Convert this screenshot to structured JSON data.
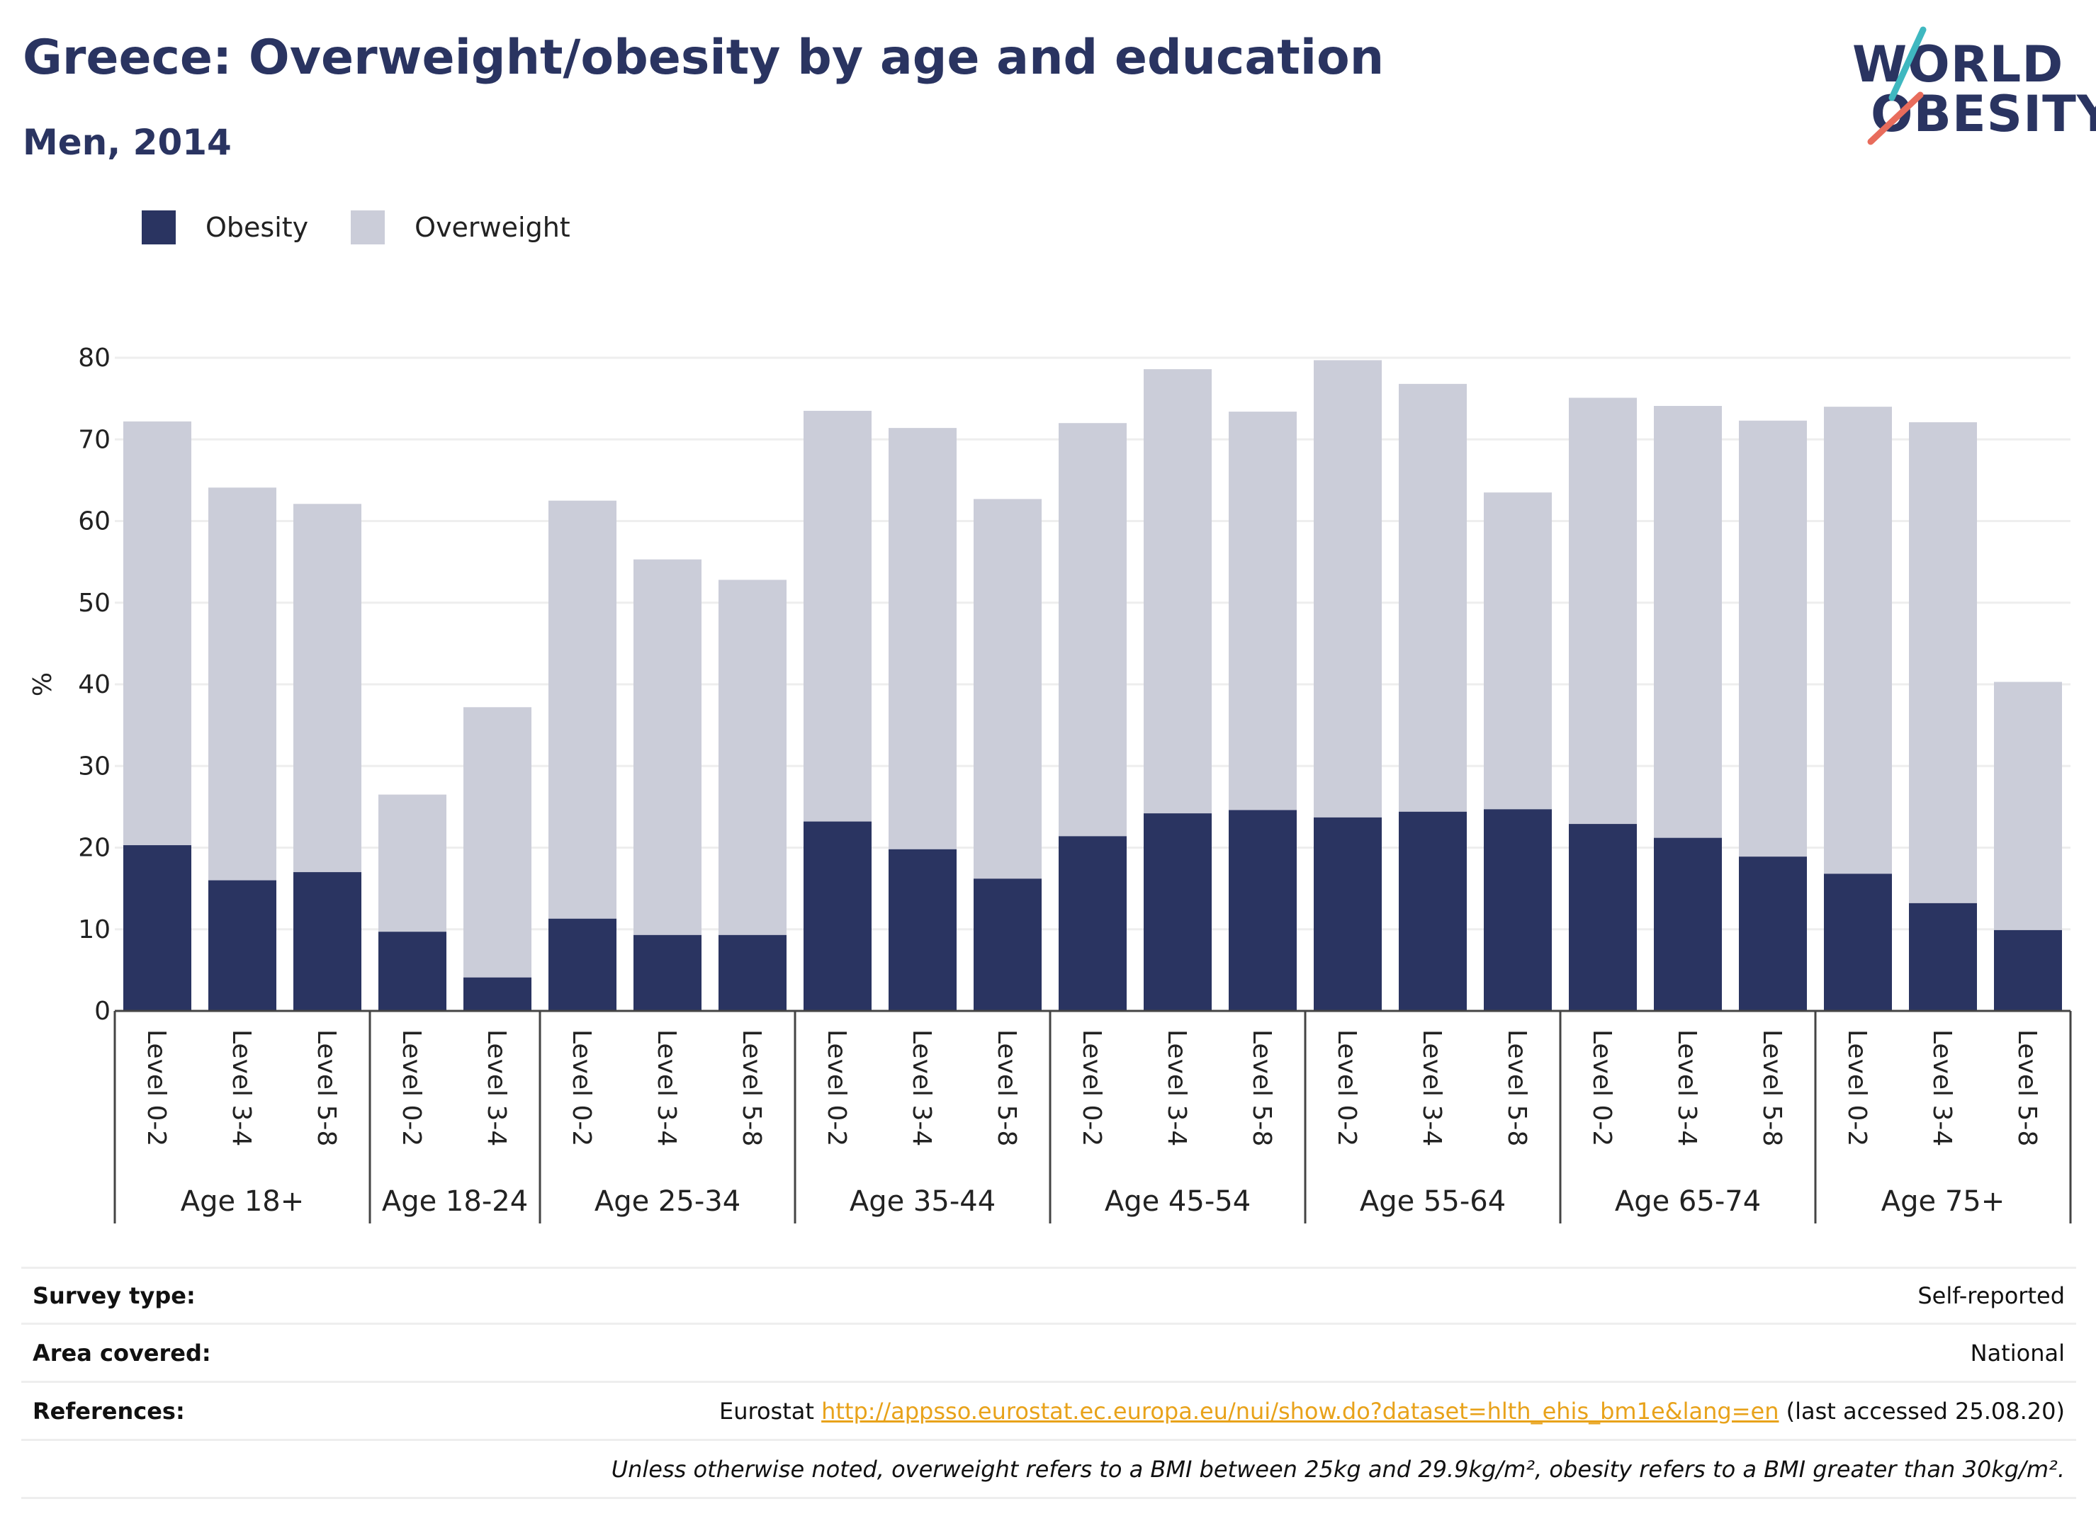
{
  "header": {
    "title": "Greece: Overweight/obesity by age and education",
    "subtitle": "Men, 2014"
  },
  "logo": {
    "line1": "WORLD",
    "line2": "OBESITY"
  },
  "colors": {
    "obesity": "#2a3461",
    "overweight": "#cbcdd9",
    "text": "#2a3461",
    "link": "#e8a21a"
  },
  "legend": {
    "obesity_label": "Obesity",
    "overweight_label": "Overweight"
  },
  "chart_data": {
    "type": "bar",
    "stacked": true,
    "ylabel": "%",
    "ylim": [
      0,
      80
    ],
    "yticks": [
      0,
      10,
      20,
      30,
      40,
      50,
      60,
      70,
      80
    ],
    "grid": true,
    "legend_position": "top-left",
    "groups": [
      {
        "label": "Age 18+",
        "categories": [
          "Level 0-2",
          "Level 3-4",
          "Level 5-8"
        ]
      },
      {
        "label": "Age 18-24",
        "categories": [
          "Level 0-2",
          "Level 3-4"
        ]
      },
      {
        "label": "Age 25-34",
        "categories": [
          "Level 0-2",
          "Level 3-4",
          "Level 5-8"
        ]
      },
      {
        "label": "Age 35-44",
        "categories": [
          "Level 0-2",
          "Level 3-4",
          "Level 5-8"
        ]
      },
      {
        "label": "Age 45-54",
        "categories": [
          "Level 0-2",
          "Level 3-4",
          "Level 5-8"
        ]
      },
      {
        "label": "Age 55-64",
        "categories": [
          "Level 0-2",
          "Level 3-4",
          "Level 5-8"
        ]
      },
      {
        "label": "Age 65-74",
        "categories": [
          "Level 0-2",
          "Level 3-4",
          "Level 5-8"
        ]
      },
      {
        "label": "Age 75+",
        "categories": [
          "Level 0-2",
          "Level 3-4",
          "Level 5-8"
        ]
      }
    ],
    "series": [
      {
        "name": "Obesity",
        "values": [
          20.3,
          16.0,
          17.0,
          9.7,
          4.1,
          11.3,
          9.3,
          9.3,
          23.2,
          19.8,
          16.2,
          21.4,
          24.2,
          24.6,
          23.7,
          24.4,
          24.7,
          22.9,
          21.2,
          18.9,
          16.8,
          13.2,
          9.9
        ]
      },
      {
        "name": "Overweight",
        "values": [
          51.9,
          48.1,
          45.1,
          16.8,
          33.1,
          51.2,
          46.0,
          43.5,
          50.3,
          51.6,
          46.5,
          50.6,
          54.4,
          48.8,
          56.0,
          52.4,
          38.8,
          52.2,
          52.9,
          53.4,
          57.2,
          58.9,
          30.4
        ]
      }
    ]
  },
  "info": {
    "survey_label": "Survey type:",
    "survey_value": "Self-reported",
    "area_label": "Area covered:",
    "area_value": "National",
    "references_label": "References:",
    "references_prefix": "Eurostat",
    "references_link": "http://appsso.eurostat.ec.europa.eu/nui/show.do?dataset=hlth_ehis_bm1e&lang=en",
    "references_suffix": "(last accessed 25.08.20)",
    "note": "Unless otherwise noted, overweight refers to a BMI between 25kg and 29.9kg/m², obesity refers to a BMI greater than 30kg/m²."
  }
}
